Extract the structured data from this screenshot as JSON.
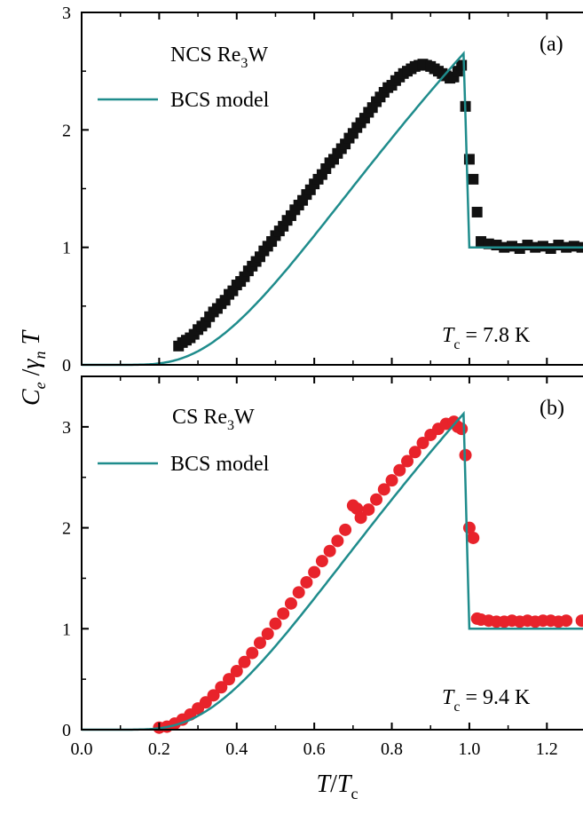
{
  "chart_data": [
    {
      "type": "scatter",
      "panel_label": "(a)",
      "sample": "NCS Re",
      "sample_sub": "3",
      "sample_tail": "W",
      "legend": "BCS model",
      "tc_value": " = 7.8 K",
      "xlim": [
        0,
        1.3
      ],
      "ylim": [
        0,
        3
      ],
      "yticks": [
        "0",
        "1",
        "2",
        "3"
      ],
      "marker": "square",
      "marker_color": "#111111",
      "line_color": "#1f8c8c",
      "series": [
        {
          "kind": "data",
          "x": [
            0.25,
            0.26,
            0.27,
            0.28,
            0.29,
            0.3,
            0.31,
            0.32,
            0.33,
            0.34,
            0.35,
            0.36,
            0.37,
            0.38,
            0.39,
            0.4,
            0.41,
            0.42,
            0.43,
            0.44,
            0.45,
            0.46,
            0.47,
            0.48,
            0.49,
            0.5,
            0.51,
            0.52,
            0.53,
            0.54,
            0.55,
            0.56,
            0.57,
            0.58,
            0.59,
            0.6,
            0.61,
            0.62,
            0.63,
            0.64,
            0.65,
            0.66,
            0.67,
            0.68,
            0.69,
            0.7,
            0.71,
            0.72,
            0.73,
            0.74,
            0.75,
            0.76,
            0.77,
            0.78,
            0.79,
            0.8,
            0.81,
            0.82,
            0.83,
            0.84,
            0.85,
            0.86,
            0.87,
            0.88,
            0.89,
            0.9,
            0.91,
            0.92,
            0.93,
            0.94,
            0.95,
            0.96,
            0.97,
            0.98,
            0.99,
            1.0,
            1.01,
            1.02,
            1.03,
            1.05,
            1.07,
            1.09,
            1.11,
            1.13,
            1.15,
            1.17,
            1.19,
            1.21,
            1.23,
            1.25,
            1.27,
            1.29
          ],
          "y": [
            0.16,
            0.19,
            0.21,
            0.23,
            0.26,
            0.3,
            0.33,
            0.36,
            0.41,
            0.45,
            0.48,
            0.52,
            0.55,
            0.6,
            0.63,
            0.68,
            0.71,
            0.75,
            0.8,
            0.84,
            0.88,
            0.92,
            0.97,
            1.01,
            1.05,
            1.1,
            1.14,
            1.18,
            1.23,
            1.27,
            1.32,
            1.36,
            1.4,
            1.45,
            1.49,
            1.54,
            1.58,
            1.62,
            1.67,
            1.72,
            1.75,
            1.8,
            1.84,
            1.88,
            1.93,
            1.97,
            2.02,
            2.06,
            2.1,
            2.15,
            2.19,
            2.24,
            2.28,
            2.32,
            2.36,
            2.38,
            2.42,
            2.45,
            2.48,
            2.5,
            2.52,
            2.54,
            2.55,
            2.56,
            2.55,
            2.54,
            2.52,
            2.5,
            2.48,
            2.46,
            2.44,
            2.45,
            2.5,
            2.55,
            2.2,
            1.75,
            1.58,
            1.3,
            1.05,
            1.03,
            1.02,
            1.0,
            1.01,
            0.99,
            1.02,
            1.0,
            1.01,
            0.99,
            1.02,
            1.0,
            1.01,
            1.0
          ]
        }
      ]
    },
    {
      "type": "scatter",
      "panel_label": "(b)",
      "sample": "CS Re",
      "sample_sub": "3",
      "sample_tail": "W",
      "legend": "BCS model",
      "tc_value": " = 9.4 K",
      "xlim": [
        0,
        1.3
      ],
      "ylim": [
        0,
        3.5
      ],
      "yticks": [
        "0",
        "1",
        "2",
        "3"
      ],
      "marker": "circle",
      "marker_color": "#e8232b",
      "line_color": "#1f8c8c",
      "series": [
        {
          "kind": "data",
          "x": [
            0.2,
            0.22,
            0.24,
            0.26,
            0.28,
            0.3,
            0.32,
            0.34,
            0.36,
            0.38,
            0.4,
            0.42,
            0.44,
            0.46,
            0.48,
            0.5,
            0.52,
            0.54,
            0.56,
            0.58,
            0.6,
            0.62,
            0.64,
            0.66,
            0.68,
            0.7,
            0.71,
            0.72,
            0.74,
            0.76,
            0.78,
            0.8,
            0.82,
            0.84,
            0.86,
            0.88,
            0.9,
            0.92,
            0.94,
            0.96,
            0.97,
            0.98,
            0.99,
            1.0,
            1.01,
            1.02,
            1.03,
            1.05,
            1.07,
            1.09,
            1.11,
            1.13,
            1.15,
            1.17,
            1.19,
            1.21,
            1.23,
            1.25,
            1.29
          ],
          "y": [
            0.02,
            0.03,
            0.06,
            0.1,
            0.15,
            0.21,
            0.27,
            0.34,
            0.42,
            0.5,
            0.58,
            0.67,
            0.76,
            0.86,
            0.95,
            1.05,
            1.15,
            1.25,
            1.36,
            1.46,
            1.56,
            1.67,
            1.77,
            1.87,
            1.98,
            2.22,
            2.19,
            2.1,
            2.18,
            2.28,
            2.38,
            2.47,
            2.57,
            2.66,
            2.75,
            2.84,
            2.92,
            2.98,
            3.03,
            3.05,
            3.0,
            2.98,
            2.72,
            2.0,
            1.9,
            1.1,
            1.09,
            1.08,
            1.07,
            1.07,
            1.08,
            1.07,
            1.08,
            1.07,
            1.08,
            1.08,
            1.07,
            1.08,
            1.08
          ]
        }
      ]
    }
  ],
  "x_ticks": [
    "0.0",
    "0.2",
    "0.4",
    "0.6",
    "0.8",
    "1.0",
    "1.2"
  ],
  "ylabel_C": "C",
  "ylabel_e": "e",
  "ylabel_slash": " /",
  "ylabel_gamma": "γ",
  "ylabel_n": "n",
  "ylabel_T": " T",
  "xlabel_T": "T",
  "xlabel_slash": "/",
  "xlabel_Tc": "T",
  "xlabel_c": "c",
  "tc_T": "T",
  "tc_c": "c"
}
